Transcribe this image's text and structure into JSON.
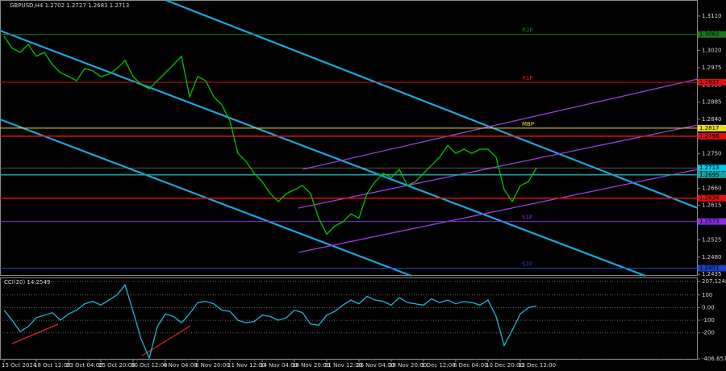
{
  "chart_data": [
    {
      "type": "line",
      "title": "GBPUSD,H4 1.2702 1.2727 1.2683 1.2713",
      "categories": [
        "15 Oct 2024",
        null,
        null,
        null,
        "18 Oct 12:00",
        null,
        null,
        null,
        "23 Oct 04:00",
        null,
        null,
        null,
        "25 Oct 20:00",
        null,
        null,
        null,
        "30 Oct 12:00",
        null,
        null,
        null,
        "4 Nov 04:00",
        null,
        null,
        null,
        "6 Nov 20:00",
        null,
        null,
        null,
        "11 Nov 12:00",
        null,
        null,
        null,
        "14 Nov 04:00",
        null,
        null,
        null,
        "18 Nov 20:00",
        null,
        null,
        null,
        "21 Nov 12:00",
        null,
        null,
        null,
        "26 Nov 04:00",
        null,
        null,
        null,
        "28 Nov 20:00",
        null,
        null,
        null,
        "3 Dec 12:00",
        null,
        null,
        null,
        "6 Dec 04:00",
        null,
        null,
        null,
        "10 Dec 20:00",
        null,
        null,
        null,
        "13 Dec 12:00",
        null,
        null
      ],
      "values": [
        1.3057,
        1.3026,
        1.3015,
        1.3036,
        1.3005,
        1.3015,
        1.2983,
        1.2962,
        1.2952,
        1.2941,
        1.2973,
        1.2967,
        1.2952,
        1.2958,
        1.2973,
        1.2994,
        1.2952,
        1.2931,
        1.292,
        1.2941,
        1.2962,
        1.2983,
        1.3005,
        1.2899,
        1.2952,
        1.2941,
        1.2899,
        1.2878,
        1.2836,
        1.2751,
        1.273,
        1.2699,
        1.2677,
        1.2646,
        1.2625,
        1.2646,
        1.2656,
        1.2667,
        1.2646,
        1.2582,
        1.254,
        1.2561,
        1.2572,
        1.2593,
        1.2582,
        1.2646,
        1.2677,
        1.2699,
        1.2688,
        1.2709,
        1.2667,
        1.2677,
        1.2699,
        1.272,
        1.2741,
        1.2772,
        1.2751,
        1.2762,
        1.2751,
        1.2762,
        1.2762,
        1.2741,
        1.2656,
        1.2625,
        1.2667,
        1.2677,
        1.2713
      ],
      "color": "#00c800",
      "ylim": [
        1.2431,
        1.3152
      ],
      "yticks": [
        {
          "value": 1.311,
          "label": "1.3110"
        },
        1.3065,
        {
          "value": 1.302,
          "label": "1.3020"
        },
        1.2975,
        {
          "value": 1.293,
          "label": "1.2930"
        },
        1.2885,
        {
          "value": 1.284,
          "label": "1.2840"
        },
        1.2795,
        {
          "value": 1.275,
          "label": "1.2750"
        },
        1.2705,
        {
          "value": 1.266,
          "label": "1.2660"
        },
        1.2615,
        {
          "value": 1.257,
          "label": "1.2570"
        },
        1.2525,
        {
          "value": 1.248,
          "label": "1.2480"
        },
        1.2435
      ],
      "levels": [
        {
          "label": "R2P",
          "value": 1.3062,
          "color": "#1f7a1f"
        },
        {
          "label": "R1P",
          "value": 1.2937,
          "color": "#e01010"
        },
        {
          "label": "MBP",
          "value": 1.2817,
          "color": "#e8e020"
        },
        {
          "label": "S1P",
          "value": 1.2573,
          "color": "#8a2be2"
        },
        {
          "label": "S2P",
          "value": 1.2451,
          "color": "#1e3fc8"
        }
      ],
      "lines": [
        {
          "value": 1.2796,
          "color": "#e01010"
        },
        {
          "value": 1.2695,
          "color": "#20a0a0"
        },
        {
          "value": 1.2634,
          "color": "#e01010"
        }
      ],
      "last_value": 1.2713,
      "last_color": "#00c8e8"
    },
    {
      "type": "line",
      "title": "CCI(20) 14.2549",
      "values": [
        -20,
        -100,
        -190,
        -150,
        -80,
        -60,
        -40,
        -100,
        -50,
        -20,
        30,
        50,
        20,
        60,
        100,
        180,
        -30,
        -250,
        -400,
        -150,
        -50,
        -70,
        -120,
        -50,
        40,
        50,
        30,
        -20,
        -30,
        -100,
        -120,
        -110,
        -60,
        -70,
        -100,
        -80,
        -20,
        -40,
        -130,
        -140,
        -60,
        -30,
        20,
        60,
        30,
        90,
        60,
        50,
        20,
        80,
        40,
        30,
        20,
        70,
        40,
        60,
        30,
        50,
        40,
        20,
        60,
        -70,
        -300,
        -180,
        -50,
        0,
        14
      ],
      "color": "#1cb8d8",
      "ylim": [
        -413,
        233
      ],
      "yticks": [
        207.1248,
        100,
        {
          "value": 0,
          "label": "0.00"
        },
        -100,
        -200,
        -406.6577
      ],
      "grid": true
    }
  ]
}
